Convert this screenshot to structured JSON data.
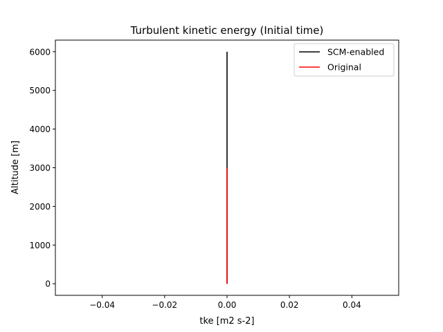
{
  "chart_data": {
    "type": "line",
    "title": "Turbulent kinetic energy (Initial time)",
    "xlabel": "tke [m2 s-2]",
    "ylabel": "Altitude [m]",
    "xlim": [
      -0.055,
      0.055
    ],
    "ylim": [
      -300,
      6300
    ],
    "xticks": [
      -0.04,
      -0.02,
      0.0,
      0.02,
      0.04
    ],
    "xtick_labels": [
      "−0.04",
      "−0.02",
      "0.00",
      "0.02",
      "0.04"
    ],
    "yticks": [
      0,
      1000,
      2000,
      3000,
      4000,
      5000,
      6000
    ],
    "ytick_labels": [
      "0",
      "1000",
      "2000",
      "3000",
      "4000",
      "5000",
      "6000"
    ],
    "grid": false,
    "legend_position": "top-right",
    "series": [
      {
        "name": "SCM-enabled",
        "color": "#000000",
        "x": [
          0,
          0
        ],
        "y": [
          0,
          6000
        ]
      },
      {
        "name": "Original",
        "color": "#ff0000",
        "x": [
          0,
          0
        ],
        "y": [
          0,
          3000
        ]
      }
    ]
  }
}
